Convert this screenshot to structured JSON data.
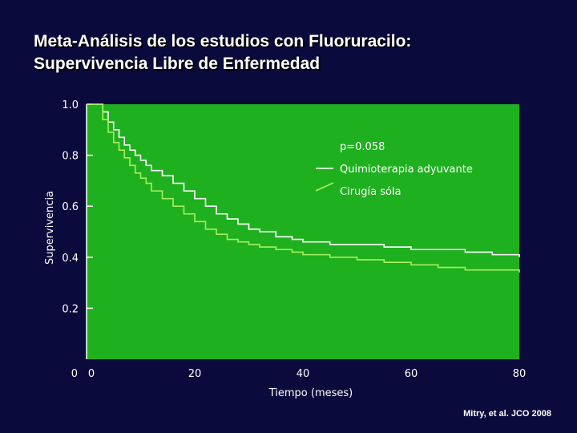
{
  "slide": {
    "title_line1": "Meta-Análisis de los estudios con Fluoruracilo:",
    "title_line2": "Supervivencia Libre de Enfermedad",
    "citation": "Mitry, et al. JCO 2008"
  },
  "colors": {
    "background": "#0a0a3c",
    "plot_area": "#1fb01f",
    "series_adjuvant": "#ffffff",
    "series_surgery": "#a8f060"
  },
  "chart_data": {
    "type": "line",
    "title": "",
    "xlabel": "Tiempo (meses)",
    "ylabel": "Supervivencia",
    "xlim": [
      0,
      80
    ],
    "ylim": [
      0,
      1.0
    ],
    "x_ticks": [
      "0",
      "20",
      "40",
      "60",
      "80"
    ],
    "y_ticks": [
      "0",
      "0.2",
      "0.4",
      "0.6",
      "0.8",
      "1.0"
    ],
    "annotation": "p=0.058",
    "legend_position": "top-right",
    "series": [
      {
        "name": "Quimioterapia adyuvante",
        "x": [
          0,
          2,
          3,
          4,
          5,
          6,
          7,
          8,
          9,
          10,
          11,
          12,
          14,
          16,
          18,
          20,
          22,
          24,
          26,
          28,
          30,
          32,
          35,
          38,
          40,
          45,
          50,
          55,
          60,
          65,
          70,
          75,
          80
        ],
        "y": [
          1.0,
          1.0,
          0.97,
          0.93,
          0.9,
          0.87,
          0.84,
          0.82,
          0.8,
          0.78,
          0.76,
          0.74,
          0.72,
          0.69,
          0.66,
          0.63,
          0.6,
          0.57,
          0.55,
          0.53,
          0.51,
          0.5,
          0.48,
          0.47,
          0.46,
          0.45,
          0.45,
          0.44,
          0.43,
          0.43,
          0.42,
          0.41,
          0.4
        ]
      },
      {
        "name": "Cirugía sóla",
        "x": [
          0,
          2,
          3,
          4,
          5,
          6,
          7,
          8,
          9,
          10,
          11,
          12,
          14,
          16,
          18,
          20,
          22,
          24,
          26,
          28,
          30,
          32,
          35,
          38,
          40,
          45,
          50,
          55,
          60,
          65,
          70,
          75,
          80
        ],
        "y": [
          1.0,
          1.0,
          0.94,
          0.89,
          0.85,
          0.82,
          0.79,
          0.76,
          0.73,
          0.71,
          0.69,
          0.66,
          0.63,
          0.6,
          0.57,
          0.54,
          0.51,
          0.49,
          0.47,
          0.46,
          0.45,
          0.44,
          0.43,
          0.42,
          0.41,
          0.4,
          0.39,
          0.38,
          0.37,
          0.36,
          0.35,
          0.35,
          0.34
        ]
      }
    ]
  }
}
